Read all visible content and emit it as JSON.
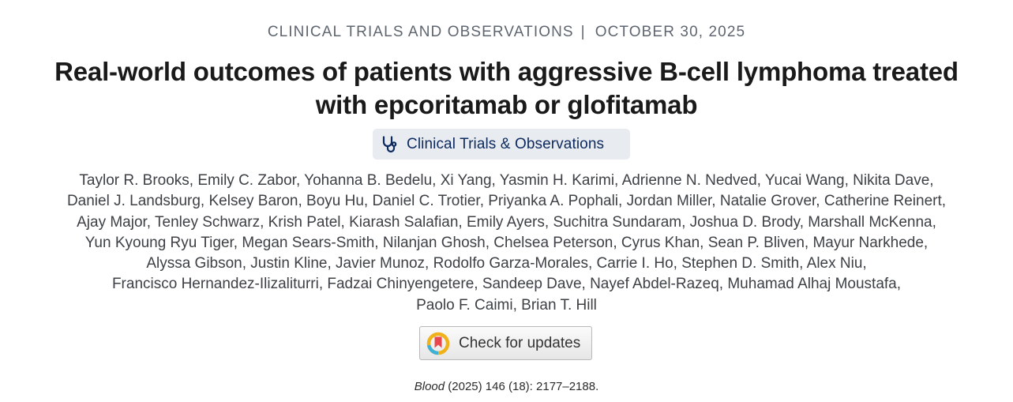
{
  "header": {
    "category": "CLINICAL TRIALS AND OBSERVATIONS",
    "separator": "|",
    "date": "OCTOBER 30, 2025"
  },
  "article": {
    "title": "Real-world outcomes of patients with aggressive B-cell lymphoma treated with epcoritamab or glofitamab",
    "badge_label": "Clinical Trials & Observations",
    "badge_icon": "stethoscope-icon",
    "authors_lines": [
      "Taylor R. Brooks, Emily C. Zabor, Yohanna B. Bedelu, Xi Yang, Yasmin H. Karimi, Adrienne N. Nedved, Yucai Wang, Nikita Dave,",
      "Daniel J. Landsburg, Kelsey Baron, Boyu Hu, Daniel C. Trotier, Priyanka A. Pophali, Jordan Miller, Natalie Grover, Catherine Reinert,",
      "Ajay Major, Tenley Schwarz, Krish Patel, Kiarash Salafian, Emily Ayers, Suchitra Sundaram, Joshua D. Brody, Marshall McKenna,",
      "Yun Kyoung Ryu Tiger, Megan Sears-Smith, Nilanjan Ghosh, Chelsea Peterson, Cyrus Khan, Sean P. Bliven, Mayur Narkhede,",
      "Alyssa Gibson, Justin Kline, Javier Munoz, Rodolfo Garza-Morales, Carrie I. Ho, Stephen D. Smith, Alex Niu,",
      "Francisco Hernandez-Ilizaliturri, Fadzai Chinyengetere, Sandeep Dave, Nayef Abdel-Razeq, Muhamad Alhaj Moustafa,",
      "Paolo F. Caimi, Brian T. Hill"
    ],
    "check_updates_label": "Check for updates",
    "check_updates_icon": "crossmark-icon",
    "citation": {
      "journal": "Blood",
      "details": " (2025) 146 (18): 2177–2188."
    }
  },
  "colors": {
    "badge_background": "#e8ecf1",
    "badge_text": "#0d2a5e",
    "meta_text": "#5f6670"
  }
}
